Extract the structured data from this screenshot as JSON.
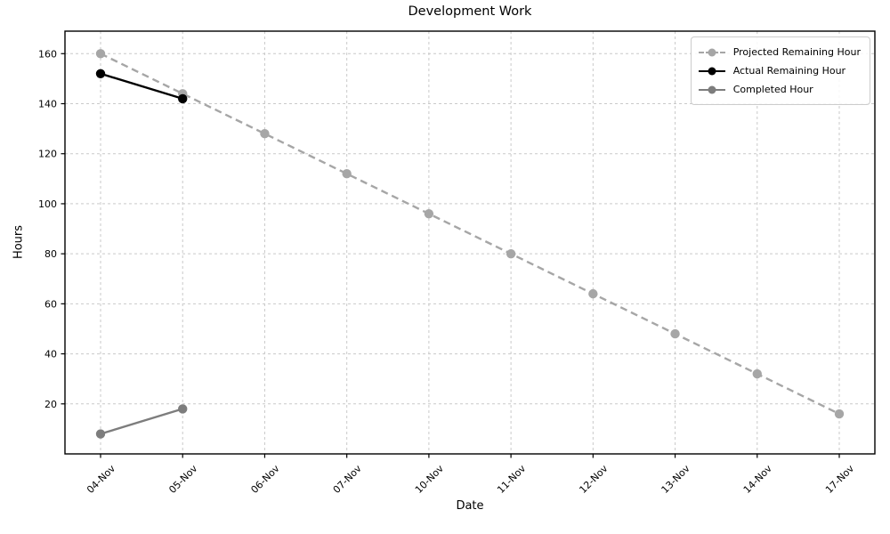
{
  "chart_data": {
    "type": "line",
    "title": "Development Work",
    "xlabel": "Date",
    "ylabel": "Hours",
    "categories": [
      "04-Nov",
      "05-Nov",
      "06-Nov",
      "07-Nov",
      "10-Nov",
      "11-Nov",
      "12-Nov",
      "13-Nov",
      "14-Nov",
      "17-Nov"
    ],
    "y_ticks": [
      20,
      40,
      60,
      80,
      100,
      120,
      140,
      160
    ],
    "ylim": [
      0,
      169
    ],
    "grid": true,
    "grid_style": "dashed",
    "legend_position": "upper right",
    "colors": {
      "projected": "#a6a6a6",
      "actual": "#000000",
      "completed": "#7d7d7d",
      "gridline": "#c9c9c9",
      "axis_frame": "#000000"
    },
    "series": [
      {
        "name": "Projected Remaining Hour",
        "color": "#a6a6a6",
        "line_style": "dashed",
        "marker": "circle",
        "values": [
          160,
          144,
          128,
          112,
          96,
          80,
          64,
          48,
          32,
          16
        ]
      },
      {
        "name": "Actual Remaining Hour",
        "color": "#000000",
        "line_style": "solid",
        "marker": "circle",
        "values": [
          152,
          142
        ]
      },
      {
        "name": "Completed Hour",
        "color": "#7d7d7d",
        "line_style": "solid",
        "marker": "circle",
        "values": [
          8,
          18
        ]
      }
    ]
  }
}
